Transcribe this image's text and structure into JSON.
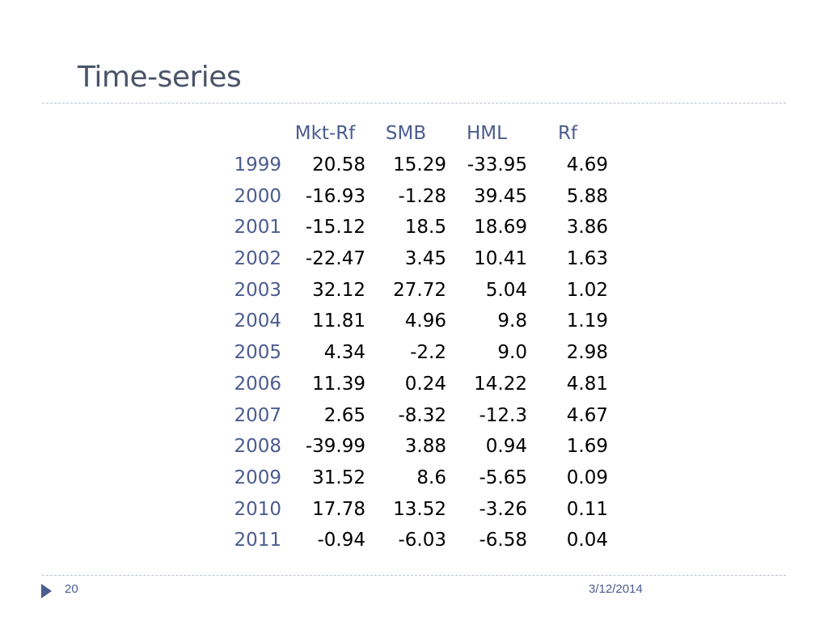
{
  "slide": {
    "title": "Time-series",
    "number": "20",
    "date": "3/12/2014",
    "accent_color": "#4b5c8f"
  },
  "table": {
    "columns": [
      "Mkt-Rf",
      "SMB",
      "HML",
      "Rf"
    ],
    "rows": [
      {
        "year": "1999",
        "values": [
          "20.58",
          "15.29",
          "-33.95",
          "4.69"
        ]
      },
      {
        "year": "2000",
        "values": [
          "-16.93",
          "-1.28",
          "39.45",
          "5.88"
        ]
      },
      {
        "year": "2001",
        "values": [
          "-15.12",
          "18.5",
          "18.69",
          "3.86"
        ]
      },
      {
        "year": "2002",
        "values": [
          "-22.47",
          "3.45",
          "10.41",
          "1.63"
        ]
      },
      {
        "year": "2003",
        "values": [
          "32.12",
          "27.72",
          "5.04",
          "1.02"
        ]
      },
      {
        "year": "2004",
        "values": [
          "11.81",
          "4.96",
          "9.8",
          "1.19"
        ]
      },
      {
        "year": "2005",
        "values": [
          "4.34",
          "-2.2",
          "9.0",
          "2.98"
        ]
      },
      {
        "year": "2006",
        "values": [
          "11.39",
          "0.24",
          "14.22",
          "4.81"
        ]
      },
      {
        "year": "2007",
        "values": [
          "2.65",
          "-8.32",
          "-12.3",
          "4.67"
        ]
      },
      {
        "year": "2008",
        "values": [
          "-39.99",
          "3.88",
          "0.94",
          "1.69"
        ]
      },
      {
        "year": "2009",
        "values": [
          "31.52",
          "8.6",
          "-5.65",
          "0.09"
        ]
      },
      {
        "year": "2010",
        "values": [
          "17.78",
          "13.52",
          "-3.26",
          "0.11"
        ]
      },
      {
        "year": "2011",
        "values": [
          "-0.94",
          "-6.03",
          "-6.58",
          "0.04"
        ]
      }
    ]
  }
}
